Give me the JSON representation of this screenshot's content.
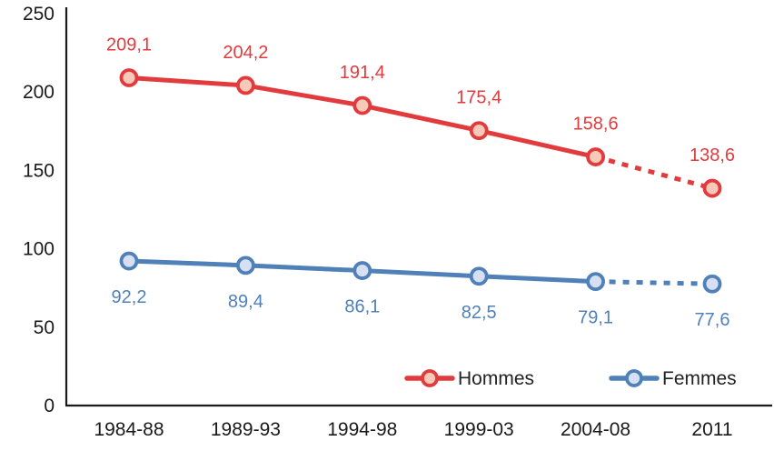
{
  "chart_data": {
    "type": "line",
    "title": "",
    "categories": [
      "1984-88",
      "1989-93",
      "1994-98",
      "1999-03",
      "2004-08",
      "2011"
    ],
    "series": [
      {
        "name": "Hommes",
        "values": [
          209.1,
          204.2,
          191.4,
          175.4,
          158.6,
          138.6
        ],
        "labels": [
          "209,1",
          "204,2",
          "191,4",
          "175,4",
          "158,6",
          "138,6"
        ],
        "color": "#E23B3D",
        "marker_fill": "#F7C9B9",
        "label_position": "above",
        "solid_until_index": 4,
        "dashed_last_segment": true
      },
      {
        "name": "Femmes",
        "values": [
          92.2,
          89.4,
          86.1,
          82.5,
          79.1,
          77.6
        ],
        "labels": [
          "92,2",
          "89,4",
          "86,1",
          "82,5",
          "79,1",
          "77,6"
        ],
        "color": "#4F80B8",
        "marker_fill": "#D7E0F2",
        "label_position": "below",
        "solid_until_index": 4,
        "dashed_last_segment": true
      }
    ],
    "y_ticks": [
      0,
      50,
      100,
      150,
      200,
      250
    ],
    "ylim": [
      0,
      250
    ],
    "grid": false,
    "legend_position": "inside-bottom",
    "legend_entries": [
      "Hommes",
      "Femmes"
    ],
    "axis_color": "#1a1a1a",
    "tick_label_color": "#1a1a1a",
    "legend_text_color": "#222222",
    "background": "#ffffff"
  }
}
